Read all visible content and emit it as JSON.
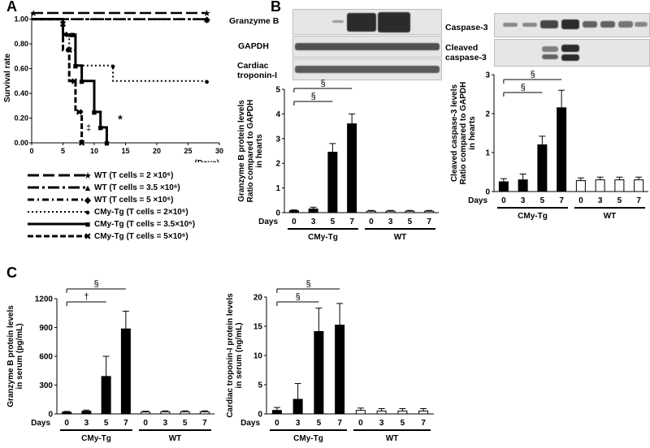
{
  "panels": {
    "a": "A",
    "b": "B",
    "c": "C"
  },
  "survival": {
    "ylabel": "Survival rate",
    "xlabel": "(Days)",
    "yticks": [
      "0.00",
      "0.20",
      "0.40",
      "0.60",
      "0.80",
      "1.00"
    ],
    "xticks": [
      "0",
      "5",
      "10",
      "15",
      "20",
      "25",
      "30"
    ],
    "xlim": [
      0,
      30
    ],
    "ylim": [
      0,
      1.05
    ],
    "annotation_star": "*",
    "annotation_dagger": "‡",
    "legend": [
      {
        "label": "WT (T cells = 2 ×10⁶)",
        "marker": "★",
        "dash": "14,5"
      },
      {
        "label": "WT (T cells = 3.5 ×10⁶)",
        "marker": "▲",
        "dash": "14,4,3,4"
      },
      {
        "label": "WT (T cells = 5 ×10⁶)",
        "marker": "◆",
        "dash": "8,4,2,4"
      },
      {
        "label": "CMy-Tg (T cells = 2×10⁶)",
        "marker": "●",
        "dash": "2,3"
      },
      {
        "label": "CMy-Tg (T cells = 3.5×10⁶)",
        "marker": "■",
        "dash": ""
      },
      {
        "label": "CMy-Tg (T cells = 5×10⁶)",
        "marker": "✖",
        "dash": "7,3"
      }
    ]
  },
  "blots": {
    "granzyme": [
      "Granzyme B",
      "GAPDH",
      "Cardiac troponin-I"
    ],
    "caspase": [
      "Caspase-3",
      "Cleaved caspase-3"
    ]
  },
  "groups": {
    "cmy": "CMy-Tg",
    "wt": "WT",
    "days_label": "Days"
  },
  "sig": {
    "section": "§",
    "dagger": "†"
  },
  "chart_data": [
    {
      "type": "line",
      "title": "",
      "xlabel": "(Days)",
      "ylabel": "Survival rate",
      "ylim": [
        0,
        1.05
      ],
      "xlim": [
        0,
        30
      ],
      "series": [
        {
          "name": "WT (T cells = 2 ×10⁶)",
          "points": [
            [
              0,
              1.05
            ],
            [
              28,
              1.05
            ]
          ]
        },
        {
          "name": "WT (T cells = 3.5 ×10⁶)",
          "points": [
            [
              0,
              1.0
            ],
            [
              28,
              1.0
            ]
          ]
        },
        {
          "name": "WT (T cells = 5 ×10⁶)",
          "points": [
            [
              0,
              1.0
            ],
            [
              28,
              1.0
            ]
          ]
        },
        {
          "name": "CMy-Tg (T cells = 2×10⁶)",
          "points": [
            [
              0,
              1.0
            ],
            [
              5,
              1.0
            ],
            [
              5,
              0.875
            ],
            [
              6,
              0.875
            ],
            [
              6,
              0.75
            ],
            [
              7,
              0.75
            ],
            [
              7,
              0.625
            ],
            [
              13,
              0.625
            ],
            [
              13,
              0.5
            ],
            [
              28,
              0.5
            ]
          ]
        },
        {
          "name": "CMy-Tg (T cells = 3.5×10⁶)",
          "points": [
            [
              0,
              1.0
            ],
            [
              5,
              1.0
            ],
            [
              5,
              0.875
            ],
            [
              7,
              0.875
            ],
            [
              7,
              0.625
            ],
            [
              8,
              0.625
            ],
            [
              8,
              0.5
            ],
            [
              10,
              0.5
            ],
            [
              10,
              0.25
            ],
            [
              11,
              0.25
            ],
            [
              11,
              0.125
            ],
            [
              12,
              0.125
            ],
            [
              12,
              0.0
            ]
          ]
        },
        {
          "name": "CMy-Tg (T cells = 5×10⁶)",
          "points": [
            [
              0,
              1.0
            ],
            [
              5,
              1.0
            ],
            [
              5,
              0.75
            ],
            [
              6,
              0.75
            ],
            [
              6,
              0.5
            ],
            [
              7,
              0.5
            ],
            [
              7,
              0.25
            ],
            [
              8,
              0.25
            ],
            [
              8,
              0.0
            ]
          ]
        }
      ]
    },
    {
      "type": "bar",
      "ylabel": "Granzyme B protein levels Ratio compared to GAPDH in hearts",
      "xlabel": "Days",
      "categories": [
        "0",
        "3",
        "5",
        "7",
        "0",
        "3",
        "5",
        "7"
      ],
      "groups": [
        "CMy-Tg",
        "CMy-Tg",
        "CMy-Tg",
        "CMy-Tg",
        "WT",
        "WT",
        "WT",
        "WT"
      ],
      "values": [
        0.08,
        0.15,
        2.45,
        3.6,
        0.06,
        0.06,
        0.06,
        0.06
      ],
      "errors": [
        0.03,
        0.07,
        0.35,
        0.4,
        0.03,
        0.03,
        0.03,
        0.03
      ],
      "ylim": [
        0,
        5
      ],
      "yticks": [
        "0",
        "1",
        "2",
        "3",
        "4",
        "5"
      ],
      "sig": [
        "§",
        "§"
      ]
    },
    {
      "type": "bar",
      "ylabel": "Cleaved caspase-3 levels Ratio compared to GAPDH in hearts",
      "xlabel": "Days",
      "categories": [
        "0",
        "3",
        "5",
        "7",
        "0",
        "3",
        "5",
        "7"
      ],
      "groups": [
        "CMy-Tg",
        "CMy-Tg",
        "CMy-Tg",
        "CMy-Tg",
        "WT",
        "WT",
        "WT",
        "WT"
      ],
      "values": [
        0.25,
        0.3,
        1.2,
        2.15,
        0.28,
        0.3,
        0.3,
        0.3
      ],
      "errors": [
        0.08,
        0.15,
        0.22,
        0.45,
        0.07,
        0.07,
        0.07,
        0.07
      ],
      "ylim": [
        0,
        3
      ],
      "yticks": [
        "0",
        "1",
        "2",
        "3"
      ],
      "sig": [
        "§",
        "§"
      ]
    },
    {
      "type": "bar",
      "ylabel": "Granzyme B protein levels in serum (pg/mL)",
      "xlabel": "Days",
      "categories": [
        "0",
        "3",
        "5",
        "7",
        "0",
        "3",
        "5",
        "7"
      ],
      "groups": [
        "CMy-Tg",
        "CMy-Tg",
        "CMy-Tg",
        "CMy-Tg",
        "WT",
        "WT",
        "WT",
        "WT"
      ],
      "values": [
        18,
        28,
        390,
        885,
        20,
        22,
        22,
        22
      ],
      "errors": [
        8,
        12,
        210,
        185,
        8,
        10,
        10,
        10
      ],
      "ylim": [
        0,
        1200
      ],
      "yticks": [
        "0",
        "300",
        "600",
        "900",
        "1200"
      ],
      "sig": [
        "§",
        "†"
      ]
    },
    {
      "type": "bar",
      "ylabel": "Cardiac troponin-I protein levels in serum (ng/mL)",
      "xlabel": "Days",
      "categories": [
        "0",
        "3",
        "5",
        "7",
        "0",
        "3",
        "5",
        "7"
      ],
      "groups": [
        "CMy-Tg",
        "CMy-Tg",
        "CMy-Tg",
        "CMy-Tg",
        "WT",
        "WT",
        "WT",
        "WT"
      ],
      "values": [
        0.6,
        2.5,
        14.1,
        15.2,
        0.6,
        0.5,
        0.5,
        0.5
      ],
      "errors": [
        0.5,
        2.7,
        4.0,
        3.7,
        0.4,
        0.4,
        0.4,
        0.4
      ],
      "ylim": [
        0,
        20
      ],
      "yticks": [
        "0",
        "5",
        "10",
        "15",
        "20"
      ],
      "sig": [
        "§",
        "§"
      ]
    }
  ]
}
